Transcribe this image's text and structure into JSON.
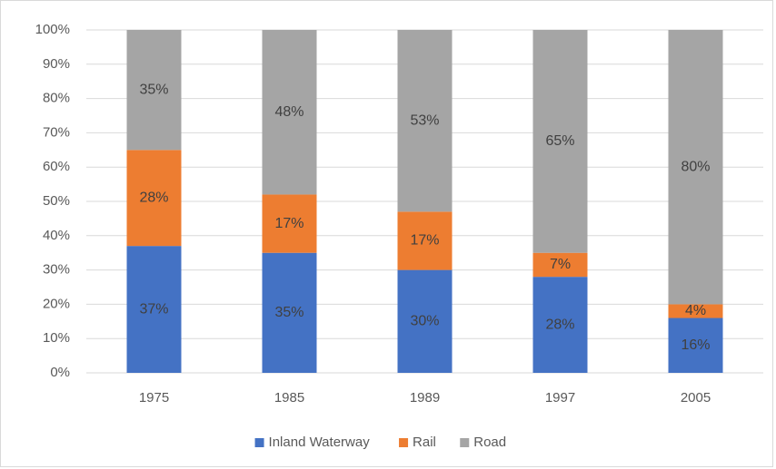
{
  "chart_data": {
    "type": "stacked_bar",
    "categories": [
      "1975",
      "1985",
      "1989",
      "1997",
      "2005"
    ],
    "series": [
      {
        "name": "Inland Waterway",
        "color": "#4472c4",
        "values": [
          37,
          35,
          30,
          28,
          16
        ],
        "value_labels": [
          "37%",
          "35%",
          "30%",
          "28%",
          "16%"
        ]
      },
      {
        "name": "Rail",
        "color": "#ed7d31",
        "values": [
          28,
          17,
          17,
          7,
          4
        ],
        "value_labels": [
          "28%",
          "17%",
          "17%",
          "7%",
          "4%"
        ]
      },
      {
        "name": "Road",
        "color": "#a5a5a5",
        "values": [
          35,
          48,
          53,
          65,
          80
        ],
        "value_labels": [
          "35%",
          "48%",
          "53%",
          "65%",
          "80%"
        ]
      }
    ],
    "ylim": [
      0,
      100
    ],
    "yticks": [
      {
        "value": 0,
        "label": "0%"
      },
      {
        "value": 10,
        "label": "10%"
      },
      {
        "value": 20,
        "label": "20%"
      },
      {
        "value": 30,
        "label": "30%"
      },
      {
        "value": 40,
        "label": "40%"
      },
      {
        "value": 50,
        "label": "50%"
      },
      {
        "value": 60,
        "label": "60%"
      },
      {
        "value": 70,
        "label": "70%"
      },
      {
        "value": 80,
        "label": "80%"
      },
      {
        "value": 90,
        "label": "90%"
      },
      {
        "value": 100,
        "label": "100%"
      }
    ],
    "grid": true,
    "legend": "bottom"
  }
}
